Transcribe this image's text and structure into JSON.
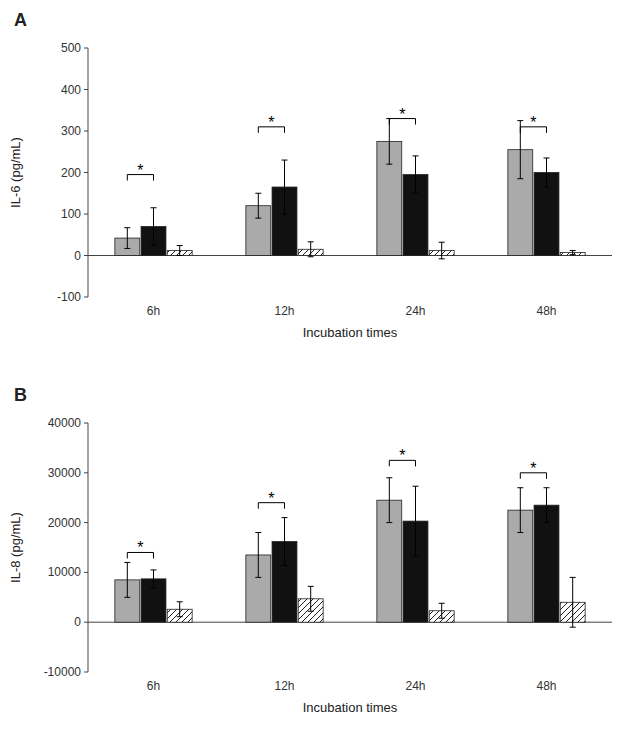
{
  "chart_data": [
    {
      "type": "bar",
      "title": "A",
      "x_label": "Incubation times",
      "y_label": "IL-6 (pg/mL)",
      "categories": [
        "6h",
        "12h",
        "24h",
        "48h"
      ],
      "series": [
        {
          "color": "#aaaaaa",
          "values": [
            42,
            120,
            275,
            255
          ],
          "errors": [
            25,
            30,
            55,
            70
          ]
        },
        {
          "color": "#111111",
          "values": [
            70,
            165,
            195,
            200
          ],
          "errors": [
            45,
            65,
            45,
            35
          ]
        },
        {
          "color": "#ffffff",
          "values": [
            12,
            15,
            12,
            7
          ],
          "errors": [
            12,
            18,
            20,
            5
          ]
        }
      ],
      "ylim": [
        -100,
        500
      ],
      "yticks": [
        -100,
        0,
        100,
        200,
        300,
        400,
        500
      ],
      "grid": false,
      "annotations": [
        {
          "text": "*",
          "category": "6h",
          "between": [
            0,
            1
          ],
          "y": 195
        },
        {
          "text": "*",
          "category": "12h",
          "between": [
            0,
            1
          ],
          "y": 310
        },
        {
          "text": "*",
          "category": "24h",
          "between": [
            0,
            1
          ],
          "y": 330
        },
        {
          "text": "*",
          "category": "48h",
          "between": [
            0,
            1
          ],
          "y": 310
        }
      ]
    },
    {
      "type": "bar",
      "title": "B",
      "x_label": "Incubation times",
      "y_label": "IL-8 (pg/mL)",
      "categories": [
        "6h",
        "12h",
        "24h",
        "48h"
      ],
      "series": [
        {
          "color": "#aaaaaa",
          "values": [
            8500,
            13500,
            24500,
            22500
          ],
          "errors": [
            3500,
            4500,
            4500,
            4500
          ]
        },
        {
          "color": "#111111",
          "values": [
            8700,
            16200,
            20300,
            23500
          ],
          "errors": [
            1800,
            4800,
            7000,
            3500
          ]
        },
        {
          "color": "#ffffff",
          "values": [
            2600,
            4700,
            2300,
            4000
          ],
          "errors": [
            1500,
            2500,
            1500,
            5000
          ]
        }
      ],
      "ylim": [
        -10000,
        40000
      ],
      "yticks": [
        -10000,
        0,
        10000,
        20000,
        30000,
        40000
      ],
      "grid": false,
      "annotations": [
        {
          "text": "*",
          "category": "6h",
          "between": [
            0,
            1
          ],
          "y": 14000
        },
        {
          "text": "*",
          "category": "12h",
          "between": [
            0,
            1
          ],
          "y": 24000
        },
        {
          "text": "*",
          "category": "24h",
          "between": [
            0,
            1
          ],
          "y": 32500
        },
        {
          "text": "*",
          "category": "48h",
          "between": [
            0,
            1
          ],
          "y": 30000
        }
      ]
    }
  ]
}
